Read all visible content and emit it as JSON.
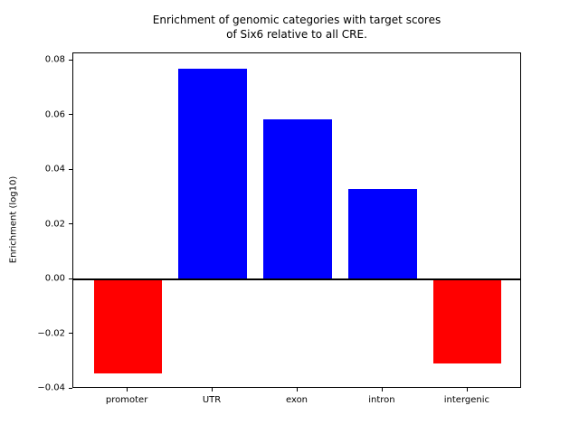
{
  "chart_data": {
    "type": "bar",
    "title_line1": "Enrichment of genomic categories with target scores",
    "title_line2": "of Six6 relative to all CRE.",
    "ylabel": "Enrichment (log10)",
    "xlabel": "",
    "categories": [
      "promoter",
      "UTR",
      "exon",
      "intron",
      "intergenic"
    ],
    "values": [
      -0.0345,
      0.0769,
      0.0585,
      0.033,
      -0.0308
    ],
    "bar_colors": [
      "#ff0000",
      "#0000ff",
      "#0000ff",
      "#0000ff",
      "#ff0000"
    ],
    "positive_color": "#0000ff",
    "negative_color": "#ff0000",
    "ylim": [
      -0.0401,
      0.0825
    ],
    "xlim": [
      -0.64,
      4.64
    ],
    "bar_width": 0.8,
    "yticks": [
      -0.04,
      -0.02,
      0,
      0.02,
      0.04,
      0.06,
      0.08
    ],
    "ytick_labels": [
      "−0.04",
      "−0.02",
      "0.00",
      "0.02",
      "0.04",
      "0.06",
      "0.08"
    ],
    "grid": false,
    "legend": "none",
    "zero_line": true,
    "axes_box": true,
    "background_color": "#ffffff"
  }
}
